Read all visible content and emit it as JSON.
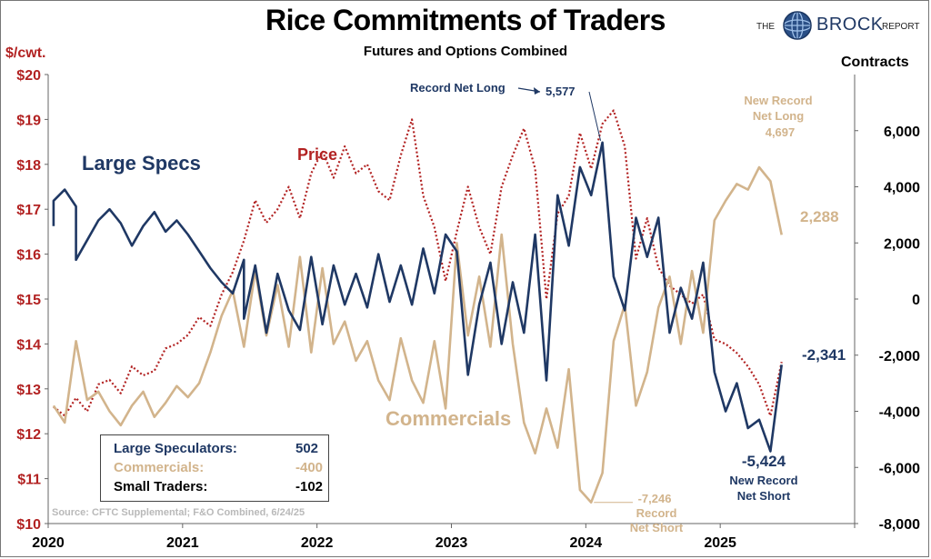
{
  "header": {
    "title": "Rice Commitments of Traders",
    "subtitle": "Futures and Options Combined",
    "logo_the": "THE",
    "logo_brock": "BROCK",
    "logo_report": "REPORT"
  },
  "axes": {
    "left_unit": "$/cwt.",
    "right_unit": "Contracts"
  },
  "colors": {
    "large_specs": "#1f3864",
    "commercials": "#d2b48c",
    "price": "#b22222",
    "small_traders": "#000000"
  },
  "legend_table": {
    "rows": [
      {
        "label": "Large Speculators:",
        "value": "502",
        "color": "#1f3864"
      },
      {
        "label": "Commercials:",
        "value": "-400",
        "color": "#d2b48c"
      },
      {
        "label": "Small Traders:",
        "value": "-102",
        "color": "#000000"
      }
    ]
  },
  "source": "Source: CFTC Supplemental; F&O Combined, 6/24/25",
  "chart_data": {
    "type": "line",
    "x_ticks": [
      "2020",
      "2021",
      "2022",
      "2023",
      "2024",
      "2025"
    ],
    "xlim": [
      "2020-01",
      "2026-01"
    ],
    "left_axis": {
      "unit": "$/cwt.",
      "ylim": [
        10,
        20
      ],
      "ticks": [
        "$10",
        "$11",
        "$12",
        "$13",
        "$14",
        "$15",
        "$16",
        "$17",
        "$18",
        "$19",
        "$20"
      ]
    },
    "right_axis": {
      "unit": "Contracts",
      "ylim": [
        -8000,
        8000
      ],
      "ticks": [
        "-8,000",
        "-6,000",
        "-4,000",
        "-2,000",
        "0",
        "2,000",
        "4,000",
        "6,000"
      ]
    },
    "grid": false,
    "series": [
      {
        "name": "Large Specs",
        "axis": "right",
        "style": "solid",
        "color": "#1f3864",
        "points": [
          [
            "2020-01",
            2600
          ],
          [
            "2020-01",
            3500
          ],
          [
            "2020-02",
            3900
          ],
          [
            "2020-03",
            3300
          ],
          [
            "2020-03",
            1400
          ],
          [
            "2020-04",
            2100
          ],
          [
            "2020-05",
            2800
          ],
          [
            "2020-06",
            3200
          ],
          [
            "2020-07",
            2700
          ],
          [
            "2020-08",
            1900
          ],
          [
            "2020-09",
            2600
          ],
          [
            "2020-10",
            3100
          ],
          [
            "2020-11",
            2400
          ],
          [
            "2020-12",
            2800
          ],
          [
            "2021-01",
            2300
          ],
          [
            "2021-02",
            1700
          ],
          [
            "2021-03",
            1100
          ],
          [
            "2021-04",
            600
          ],
          [
            "2021-05",
            200
          ],
          [
            "2021-06",
            1400
          ],
          [
            "2021-06",
            -700
          ],
          [
            "2021-07",
            1200
          ],
          [
            "2021-08",
            -1200
          ],
          [
            "2021-09",
            900
          ],
          [
            "2021-10",
            -400
          ],
          [
            "2021-11",
            -1100
          ],
          [
            "2021-12",
            1500
          ],
          [
            "2022-01",
            -900
          ],
          [
            "2022-02",
            1200
          ],
          [
            "2022-03",
            -200
          ],
          [
            "2022-04",
            900
          ],
          [
            "2022-05",
            -300
          ],
          [
            "2022-06",
            1600
          ],
          [
            "2022-07",
            -100
          ],
          [
            "2022-08",
            1200
          ],
          [
            "2022-09",
            -200
          ],
          [
            "2022-10",
            1800
          ],
          [
            "2022-11",
            200
          ],
          [
            "2022-12",
            2300
          ],
          [
            "2023-01",
            1700
          ],
          [
            "2023-02",
            -2700
          ],
          [
            "2023-03",
            -200
          ],
          [
            "2023-04",
            1300
          ],
          [
            "2023-05",
            -1600
          ],
          [
            "2023-06",
            600
          ],
          [
            "2023-07",
            -1200
          ],
          [
            "2023-08",
            2300
          ],
          [
            "2023-09",
            -2900
          ],
          [
            "2023-10",
            3700
          ],
          [
            "2023-11",
            1900
          ],
          [
            "2023-12",
            4700
          ],
          [
            "2024-01",
            3700
          ],
          [
            "2024-02",
            5577
          ],
          [
            "2024-03",
            800
          ],
          [
            "2024-04",
            -400
          ],
          [
            "2024-05",
            2900
          ],
          [
            "2024-06",
            1500
          ],
          [
            "2024-07",
            2900
          ],
          [
            "2024-08",
            -1200
          ],
          [
            "2024-09",
            400
          ],
          [
            "2024-10",
            -700
          ],
          [
            "2024-11",
            1300
          ],
          [
            "2024-12",
            -2600
          ],
          [
            "2025-01",
            -4000
          ],
          [
            "2025-02",
            -3000
          ],
          [
            "2025-03",
            -4600
          ],
          [
            "2025-04",
            -4300
          ],
          [
            "2025-05",
            -5424
          ],
          [
            "2025-06",
            -2341
          ]
        ]
      },
      {
        "name": "Commercials",
        "axis": "right",
        "style": "solid",
        "color": "#d2b48c",
        "points": [
          [
            "2020-01",
            -3800
          ],
          [
            "2020-02",
            -4400
          ],
          [
            "2020-03",
            -1500
          ],
          [
            "2020-04",
            -3600
          ],
          [
            "2020-05",
            -3300
          ],
          [
            "2020-06",
            -4000
          ],
          [
            "2020-07",
            -4500
          ],
          [
            "2020-08",
            -3800
          ],
          [
            "2020-09",
            -3300
          ],
          [
            "2020-10",
            -4200
          ],
          [
            "2020-11",
            -3700
          ],
          [
            "2020-12",
            -3100
          ],
          [
            "2021-01",
            -3500
          ],
          [
            "2021-02",
            -3000
          ],
          [
            "2021-03",
            -1900
          ],
          [
            "2021-04",
            -600
          ],
          [
            "2021-05",
            300
          ],
          [
            "2021-06",
            -1700
          ],
          [
            "2021-07",
            1000
          ],
          [
            "2021-08",
            -1300
          ],
          [
            "2021-09",
            500
          ],
          [
            "2021-10",
            -1700
          ],
          [
            "2021-11",
            1500
          ],
          [
            "2021-12",
            -1900
          ],
          [
            "2022-01",
            1100
          ],
          [
            "2022-02",
            -1600
          ],
          [
            "2022-03",
            -800
          ],
          [
            "2022-04",
            -2200
          ],
          [
            "2022-05",
            -1500
          ],
          [
            "2022-06",
            -2900
          ],
          [
            "2022-07",
            -3600
          ],
          [
            "2022-08",
            -1400
          ],
          [
            "2022-09",
            -2900
          ],
          [
            "2022-10",
            -3700
          ],
          [
            "2022-11",
            -1500
          ],
          [
            "2022-12",
            -3900
          ],
          [
            "2023-01",
            2000
          ],
          [
            "2023-02",
            -1300
          ],
          [
            "2023-03",
            800
          ],
          [
            "2023-04",
            -1700
          ],
          [
            "2023-05",
            2300
          ],
          [
            "2023-06",
            -1600
          ],
          [
            "2023-07",
            -4400
          ],
          [
            "2023-08",
            -5500
          ],
          [
            "2023-09",
            -3900
          ],
          [
            "2023-10",
            -5300
          ],
          [
            "2023-11",
            -2500
          ],
          [
            "2023-12",
            -6800
          ],
          [
            "2024-01",
            -7246
          ],
          [
            "2024-02",
            -6200
          ],
          [
            "2024-03",
            -1500
          ],
          [
            "2024-04",
            -200
          ],
          [
            "2024-05",
            -3800
          ],
          [
            "2024-06",
            -2600
          ],
          [
            "2024-07",
            -300
          ],
          [
            "2024-08",
            800
          ],
          [
            "2024-09",
            -1600
          ],
          [
            "2024-10",
            1000
          ],
          [
            "2024-11",
            -1200
          ],
          [
            "2024-12",
            2800
          ],
          [
            "2025-01",
            3500
          ],
          [
            "2025-02",
            4100
          ],
          [
            "2025-03",
            3900
          ],
          [
            "2025-04",
            4697
          ],
          [
            "2025-05",
            4200
          ],
          [
            "2025-06",
            2288
          ]
        ]
      },
      {
        "name": "Price",
        "axis": "left",
        "style": "dotted",
        "color": "#b22222",
        "points": [
          [
            "2020-01",
            12.6
          ],
          [
            "2020-02",
            12.4
          ],
          [
            "2020-03",
            12.8
          ],
          [
            "2020-04",
            12.5
          ],
          [
            "2020-05",
            13.1
          ],
          [
            "2020-06",
            13.2
          ],
          [
            "2020-07",
            12.9
          ],
          [
            "2020-08",
            13.5
          ],
          [
            "2020-09",
            13.3
          ],
          [
            "2020-10",
            13.4
          ],
          [
            "2020-11",
            13.9
          ],
          [
            "2020-12",
            14.0
          ],
          [
            "2021-01",
            14.2
          ],
          [
            "2021-02",
            14.6
          ],
          [
            "2021-03",
            14.4
          ],
          [
            "2021-04",
            15.1
          ],
          [
            "2021-05",
            15.6
          ],
          [
            "2021-06",
            16.3
          ],
          [
            "2021-07",
            17.2
          ],
          [
            "2021-08",
            16.7
          ],
          [
            "2021-09",
            17.0
          ],
          [
            "2021-10",
            17.5
          ],
          [
            "2021-11",
            16.8
          ],
          [
            "2021-12",
            17.8
          ],
          [
            "2022-01",
            18.3
          ],
          [
            "2022-02",
            17.7
          ],
          [
            "2022-03",
            18.4
          ],
          [
            "2022-04",
            17.8
          ],
          [
            "2022-05",
            18.0
          ],
          [
            "2022-06",
            17.4
          ],
          [
            "2022-07",
            17.2
          ],
          [
            "2022-08",
            18.2
          ],
          [
            "2022-09",
            19.0
          ],
          [
            "2022-10",
            17.3
          ],
          [
            "2022-11",
            16.6
          ],
          [
            "2022-12",
            15.4
          ],
          [
            "2023-01",
            16.5
          ],
          [
            "2023-02",
            17.5
          ],
          [
            "2023-03",
            16.6
          ],
          [
            "2023-04",
            16.0
          ],
          [
            "2023-05",
            17.5
          ],
          [
            "2023-06",
            18.2
          ],
          [
            "2023-07",
            18.8
          ],
          [
            "2023-08",
            17.9
          ],
          [
            "2023-09",
            15.0
          ],
          [
            "2023-10",
            16.9
          ],
          [
            "2023-11",
            17.3
          ],
          [
            "2023-12",
            18.7
          ],
          [
            "2024-01",
            17.9
          ],
          [
            "2024-02",
            18.9
          ],
          [
            "2024-03",
            19.2
          ],
          [
            "2024-04",
            18.4
          ],
          [
            "2024-05",
            15.9
          ],
          [
            "2024-06",
            16.8
          ],
          [
            "2024-07",
            15.7
          ],
          [
            "2024-08",
            15.3
          ],
          [
            "2024-09",
            15.1
          ],
          [
            "2024-10",
            14.9
          ],
          [
            "2024-11",
            15.1
          ],
          [
            "2024-12",
            14.1
          ],
          [
            "2025-01",
            14.0
          ],
          [
            "2025-02",
            13.8
          ],
          [
            "2025-03",
            13.5
          ],
          [
            "2025-04",
            13.1
          ],
          [
            "2025-05",
            12.4
          ],
          [
            "2025-06",
            13.6
          ]
        ]
      }
    ],
    "annotations": [
      {
        "id": "large-specs-label",
        "text": "Large Specs",
        "color": "#1f3864"
      },
      {
        "id": "price-label",
        "text": "Price",
        "color": "#b22222"
      },
      {
        "id": "commercials-label",
        "text": "Commercials",
        "color": "#d2b48c"
      },
      {
        "id": "record-net-long",
        "text": "Record Net Long",
        "value": "5,577",
        "color": "#1f3864"
      },
      {
        "id": "new-record-net-long",
        "text": "New Record\nNet Long",
        "value": "4,697",
        "color": "#d2b48c"
      },
      {
        "id": "comm-last",
        "value": "2,288",
        "color": "#d2b48c"
      },
      {
        "id": "ls-last",
        "value": "-2,341",
        "color": "#1f3864"
      },
      {
        "id": "new-record-net-short",
        "text": "New Record\nNet Short",
        "value": "-5,424",
        "color": "#1f3864"
      },
      {
        "id": "comm-record-short",
        "text": "Record\nNet Short",
        "value": "-7,246",
        "color": "#d2b48c"
      }
    ]
  }
}
